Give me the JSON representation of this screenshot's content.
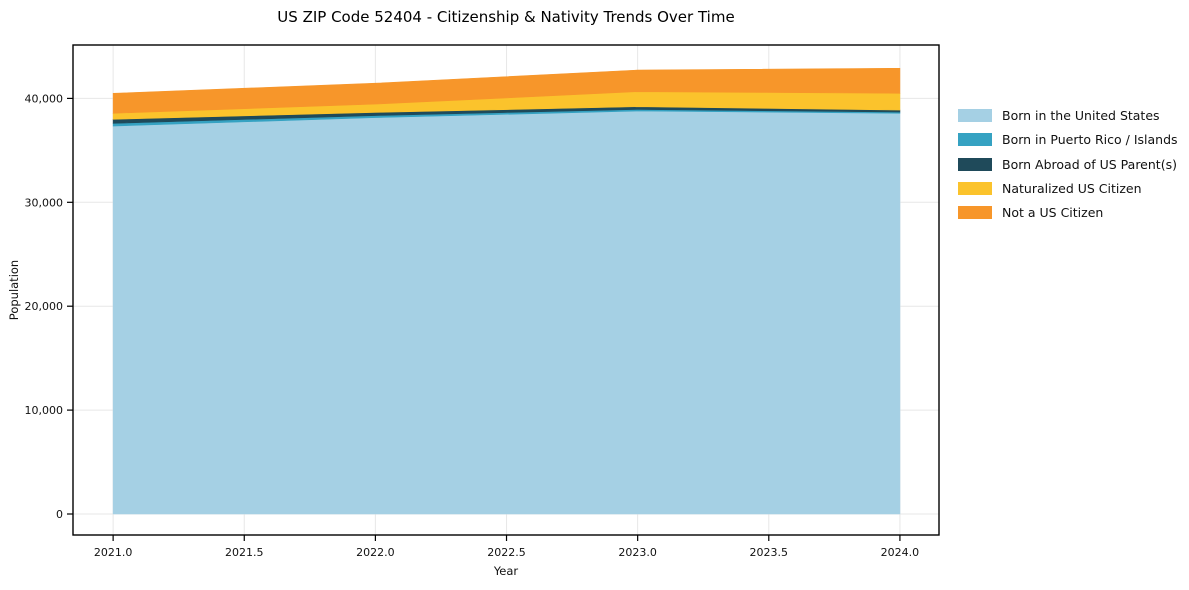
{
  "chart_data": {
    "type": "area",
    "stacked": true,
    "title": "US ZIP Code 52404 - Citizenship & Nativity Trends Over Time",
    "xlabel": "Year",
    "ylabel": "Population",
    "x": [
      2021,
      2022,
      2023,
      2024
    ],
    "series": [
      {
        "name": "Born in the United States",
        "color": "#a5d0e4",
        "values": [
          37340,
          38150,
          38790,
          38570
        ]
      },
      {
        "name": "Born in Puerto Rico / Islands",
        "color": "#35a2c2",
        "values": [
          260,
          200,
          150,
          120
        ]
      },
      {
        "name": "Born Abroad of US Parent(s)",
        "color": "#1f4a5a",
        "values": [
          390,
          300,
          260,
          190
        ]
      },
      {
        "name": "Naturalized US Citizen",
        "color": "#fbc32c",
        "values": [
          580,
          800,
          1450,
          1610
        ]
      },
      {
        "name": "Not a US Citizen",
        "color": "#f7962a",
        "values": [
          1920,
          2010,
          2080,
          2410
        ]
      }
    ],
    "totals": [
      40490,
      41460,
      42730,
      42900
    ],
    "xticks": {
      "values": [
        2021.0,
        2021.5,
        2022.0,
        2022.5,
        2023.0,
        2023.5,
        2024.0
      ],
      "labels": [
        "2021.0",
        "2021.5",
        "2022.0",
        "2022.5",
        "2023.0",
        "2023.5",
        "2024.0"
      ]
    },
    "yticks": {
      "values": [
        0,
        10000,
        20000,
        30000,
        40000
      ],
      "labels": [
        "0",
        "10,000",
        "20,000",
        "30,000",
        "40,000"
      ]
    },
    "xlim": [
      2020.847,
      2024.149
    ],
    "ylim": [
      -2021,
      45140
    ],
    "grid": true,
    "legend_position": "right"
  },
  "colors": {
    "grid": "#e7e7e7",
    "spine": "#000000",
    "tick_text": "#111111"
  }
}
